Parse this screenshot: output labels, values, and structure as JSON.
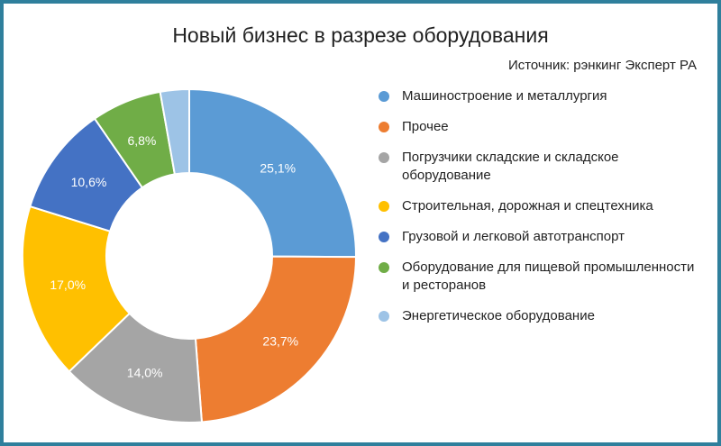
{
  "chart_data": {
    "type": "pie",
    "donut": true,
    "title": "Новый бизнес в разрезе оборудования",
    "source": "Источник: рэнкинг Эксперт РА",
    "legend_position": "right",
    "slices": [
      {
        "name": "Машиностроение и металлургия",
        "value": 25.1,
        "label": "25,1%",
        "color": "#5b9bd5"
      },
      {
        "name": "Прочее",
        "value": 23.7,
        "label": "23,7%",
        "color": "#ed7d31"
      },
      {
        "name": "Погрузчики складские и складское оборудование",
        "value": 14.0,
        "label": "14,0%",
        "color": "#a5a5a5"
      },
      {
        "name": "Строительная, дорожная и спецтехника",
        "value": 17.0,
        "label": "17,0%",
        "color": "#ffc000"
      },
      {
        "name": "Грузовой и легковой автотранспорт",
        "value": 10.6,
        "label": "10,6%",
        "color": "#4472c4"
      },
      {
        "name": "Оборудование для пищевой промышленности и ресторанов",
        "value": 6.8,
        "label": "6,8%",
        "color": "#70ad47"
      },
      {
        "name": "Энергетическое оборудование",
        "value": 2.8,
        "label": "",
        "color": "#9dc3e6"
      }
    ]
  }
}
